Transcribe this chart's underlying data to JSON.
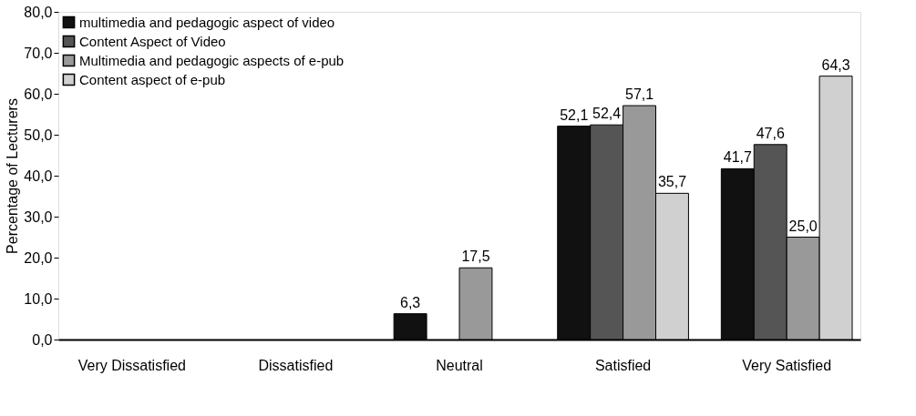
{
  "chart_data": {
    "type": "bar",
    "ylabel": "Percentage of Lecturers",
    "categories": [
      "Very Dissatisfied",
      "Dissatisfied",
      "Neutral",
      "Satisfied",
      "Very Satisfied"
    ],
    "series": [
      {
        "name": "multimedia and pedagogic aspect of video",
        "color": "#111111",
        "values": [
          0,
          0,
          6.3,
          52.1,
          41.7
        ],
        "value_labels": [
          null,
          null,
          "6,3",
          "52,1",
          "41,7"
        ]
      },
      {
        "name": "Content Aspect of Video",
        "color": "#555555",
        "values": [
          0,
          0,
          0,
          52.4,
          47.6
        ],
        "value_labels": [
          null,
          null,
          null,
          "52,4",
          "47,6"
        ]
      },
      {
        "name": "Multimedia and pedagogic aspects of e-pub",
        "color": "#999999",
        "values": [
          0,
          0,
          17.5,
          57.1,
          25.0
        ],
        "value_labels": [
          null,
          null,
          "17,5",
          "57,1",
          "25,0"
        ]
      },
      {
        "name": "Content aspect of e-pub",
        "color": "#d0d0d0",
        "values": [
          0,
          0,
          0,
          35.7,
          64.3
        ],
        "value_labels": [
          null,
          null,
          null,
          "35,7",
          "64,3"
        ]
      }
    ],
    "ylim": [
      0,
      80
    ],
    "yticks": [
      {
        "value": 0,
        "label": "0,0"
      },
      {
        "value": 10,
        "label": "10,0"
      },
      {
        "value": 20,
        "label": "20,0"
      },
      {
        "value": 30,
        "label": "30,0"
      },
      {
        "value": 40,
        "label": "40,0"
      },
      {
        "value": 50,
        "label": "50,0"
      },
      {
        "value": 60,
        "label": "60,0"
      },
      {
        "value": 70,
        "label": "70,0"
      },
      {
        "value": 80,
        "label": "80,0"
      }
    ],
    "grid": false,
    "legend": "top left"
  }
}
